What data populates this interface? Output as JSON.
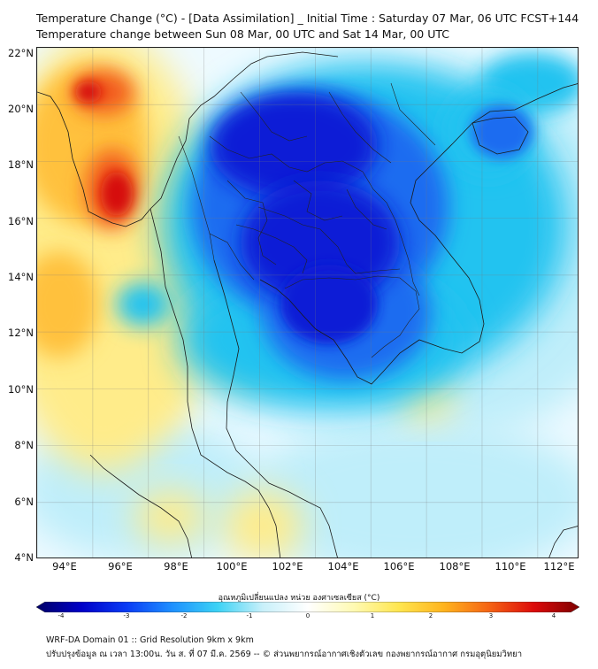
{
  "title": {
    "line1": "Temperature Change (°C) - [Data Assimilation] _ Initial Time : Saturday 07 Mar, 06 UTC FCST+144",
    "line2": "Temperature change between Sun 08 Mar, 00 UTC and Sat 14 Mar, 00 UTC"
  },
  "map": {
    "lat_range": [
      4,
      22
    ],
    "lon_range": [
      93,
      112.5
    ],
    "lat_labels": [
      "22°N",
      "20°N",
      "18°N",
      "16°N",
      "14°N",
      "12°N",
      "10°N",
      "8°N",
      "6°N",
      "4°N"
    ],
    "lon_labels": [
      "94°E",
      "96°E",
      "98°E",
      "100°E",
      "102°E",
      "104°E",
      "106°E",
      "108°E",
      "110°E",
      "112°E"
    ],
    "colors": {
      "strong_cold": "#0a1fd6",
      "cold": "#1e6cf0",
      "cool": "#22c3f0",
      "light_cool": "#bfeefa",
      "neutral": "#eefaff",
      "warm": "#ffec8a",
      "warmer": "#ffc13d",
      "hot": "#f25a1a",
      "very_hot": "#d60f0f"
    }
  },
  "colorbar": {
    "title": "อุณหภูมิเปลี่ยนแปลง หน่วย องศาเซลเซียส (°C)",
    "min": -4,
    "max": 4,
    "ticks": [
      "-4",
      "-3",
      "-2",
      "-1",
      "0",
      "1",
      "2",
      "3",
      "4"
    ],
    "stops": [
      "#000066",
      "#0000c8",
      "#0a3cf5",
      "#1e90ff",
      "#3cd2f5",
      "#c8f0fa",
      "#ffffff",
      "#fffab4",
      "#ffe650",
      "#ffb41e",
      "#f56414",
      "#dc0a0a",
      "#7d0000"
    ]
  },
  "footer": {
    "line1": "WRF-DA Domain 01 :: Grid Resolution 9km x 9km",
    "line2": "ปรับปรุงข้อมูล ณ เวลา 13:00น. วัน ส. ที่ 07 มี.ค. 2569 -- © ส่วนพยากรณ์อากาศเชิงตัวเลข กองพยากรณ์อากาศ กรมอุตุนิยมวิทยา"
  }
}
